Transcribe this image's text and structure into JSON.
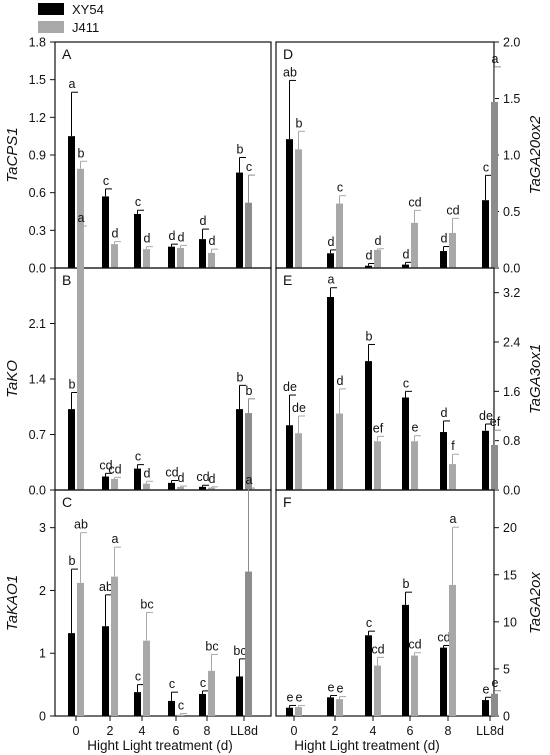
{
  "legend": [
    {
      "label": "XY54",
      "color": "#000000"
    },
    {
      "label": "J411",
      "color": "#a8a8a8"
    }
  ],
  "colors": {
    "XY54": "#000000",
    "J411": "#a8a8a8",
    "J411_LL8d": "#8c8c8c"
  },
  "x_axis": {
    "categories": [
      "0",
      "2",
      "4",
      "6",
      "8",
      "LL8d"
    ],
    "label_left": "Hight Light treatment (d)",
    "label_right": "Hight Light treatment (d)"
  },
  "chart_data": [
    {
      "panel": "A",
      "type": "bar",
      "ylabel": "TaCPS1",
      "axis_side": "left",
      "ylim": [
        0,
        1.8
      ],
      "yticks": [
        "0.0",
        "0.3",
        "0.6",
        "0.9",
        "1.2",
        "1.5",
        "1.8"
      ],
      "categories": [
        "0",
        "2",
        "4",
        "6",
        "8",
        "LL8d"
      ],
      "series": [
        {
          "name": "XY54",
          "values": [
            1.05,
            0.57,
            0.43,
            0.17,
            0.23,
            0.76
          ],
          "errors": [
            0.35,
            0.06,
            0.03,
            0.02,
            0.08,
            0.12
          ],
          "letters": [
            "a",
            "c",
            "c",
            "d",
            "d",
            "b"
          ]
        },
        {
          "name": "J411",
          "values": [
            0.79,
            0.19,
            0.15,
            0.16,
            0.12,
            0.52
          ],
          "errors": [
            0.06,
            0.02,
            0.02,
            0.02,
            0.03,
            0.22
          ],
          "letters": [
            "b",
            "d",
            "d",
            "d",
            "d",
            "c"
          ]
        }
      ]
    },
    {
      "panel": "B",
      "type": "bar",
      "ylabel": "TaKO",
      "axis_side": "left",
      "ylim": [
        0,
        2.8
      ],
      "yticks": [
        "0.0",
        "0.7",
        "1.4",
        "2.1"
      ],
      "categories": [
        "0",
        "2",
        "4",
        "6",
        "8",
        "LL8d"
      ],
      "series": [
        {
          "name": "XY54",
          "values": [
            1.02,
            0.17,
            0.27,
            0.09,
            0.04,
            1.02
          ],
          "errors": [
            0.21,
            0.04,
            0.05,
            0.03,
            0.02,
            0.3
          ],
          "letters": [
            "b",
            "cd",
            "c",
            "cd",
            "cd",
            "b"
          ]
        },
        {
          "name": "J411",
          "values": [
            2.98,
            0.14,
            0.08,
            0.04,
            0.03,
            0.97
          ],
          "errors": [
            0.35,
            0.02,
            0.03,
            0.01,
            0.01,
            0.18
          ],
          "letters": [
            "a",
            "cd",
            "d",
            "d",
            "d",
            "b"
          ]
        }
      ]
    },
    {
      "panel": "C",
      "type": "bar",
      "ylabel": "TaKAO1",
      "axis_side": "left",
      "ylim": [
        0,
        3.6
      ],
      "yticks": [
        "0",
        "1",
        "2",
        "3"
      ],
      "categories": [
        "0",
        "2",
        "4",
        "6",
        "8",
        "LL8d"
      ],
      "series": [
        {
          "name": "XY54",
          "values": [
            1.32,
            1.43,
            0.38,
            0.24,
            0.35,
            0.63
          ],
          "errors": [
            1.02,
            0.5,
            0.12,
            0.14,
            0.05,
            0.28
          ],
          "letters": [
            "b",
            "ab",
            "c",
            "c",
            "c",
            "bc"
          ]
        },
        {
          "name": "J411",
          "values": [
            2.12,
            2.22,
            1.2,
            0.02,
            0.72,
            2.3
          ],
          "errors": [
            0.8,
            0.47,
            0.45,
            0.02,
            0.26,
            1.33
          ],
          "letters": [
            "ab",
            "a",
            "bc",
            "c",
            "bc",
            "a"
          ]
        }
      ]
    },
    {
      "panel": "D",
      "type": "bar",
      "ylabel": "TaGA20ox2",
      "axis_side": "right",
      "ylim": [
        0,
        2.0
      ],
      "yticks": [
        "0.0",
        "0.5",
        "1.0",
        "1.5",
        "2.0"
      ],
      "categories": [
        "0",
        "2",
        "4",
        "6",
        "8",
        "LL8d"
      ],
      "series": [
        {
          "name": "XY54",
          "values": [
            1.14,
            0.13,
            0.02,
            0.03,
            0.15,
            0.6
          ],
          "errors": [
            0.52,
            0.03,
            0.02,
            0.02,
            0.04,
            0.22
          ],
          "letters": [
            "ab",
            "d",
            "d",
            "d",
            "d",
            "c"
          ]
        },
        {
          "name": "J411",
          "values": [
            1.05,
            0.57,
            0.16,
            0.4,
            0.31,
            1.47
          ],
          "errors": [
            0.16,
            0.07,
            0.01,
            0.11,
            0.13,
            0.31
          ],
          "letters": [
            "b",
            "c",
            "d",
            "cd",
            "cd",
            "a"
          ]
        }
      ]
    },
    {
      "panel": "E",
      "type": "bar",
      "ylabel": "TaGA3ox1",
      "axis_side": "right",
      "ylim": [
        0,
        3.6
      ],
      "yticks": [
        "0.0",
        "0.8",
        "1.6",
        "2.4",
        "3.2"
      ],
      "categories": [
        "0",
        "2",
        "4",
        "6",
        "8",
        "LL8d"
      ],
      "series": [
        {
          "name": "XY54",
          "values": [
            1.05,
            3.13,
            2.09,
            1.5,
            0.94,
            0.96
          ],
          "errors": [
            0.49,
            0.15,
            0.27,
            0.1,
            0.18,
            0.11
          ],
          "letters": [
            "de",
            "a",
            "b",
            "c",
            "d",
            "de"
          ]
        },
        {
          "name": "J411",
          "values": [
            0.92,
            1.24,
            0.79,
            0.79,
            0.42,
            0.73
          ],
          "errors": [
            0.28,
            0.4,
            0.08,
            0.09,
            0.16,
            0.24
          ],
          "letters": [
            "de",
            "d",
            "ef",
            "e",
            "f",
            "ef"
          ]
        }
      ]
    },
    {
      "panel": "F",
      "type": "bar",
      "ylabel": "TaGA2ox",
      "axis_side": "right",
      "ylim": [
        0,
        24
      ],
      "yticks": [
        "0",
        "5",
        "10",
        "15",
        "20"
      ],
      "categories": [
        "0",
        "2",
        "4",
        "6",
        "8",
        "LL8d"
      ],
      "series": [
        {
          "name": "XY54",
          "values": [
            0.88,
            1.98,
            8.57,
            11.8,
            7.26,
            1.69
          ],
          "errors": [
            0.24,
            0.2,
            0.44,
            1.35,
            0.23,
            0.3
          ],
          "letters": [
            "e",
            "e",
            "c",
            "b",
            "cd",
            "e"
          ]
        },
        {
          "name": "J411",
          "values": [
            0.95,
            1.79,
            5.35,
            6.42,
            13.92,
            2.37
          ],
          "errors": [
            0.16,
            0.27,
            0.88,
            0.3,
            6.13,
            0.31
          ],
          "letters": [
            "e",
            "e",
            "cd",
            "cd",
            "a",
            "e"
          ]
        }
      ]
    }
  ]
}
